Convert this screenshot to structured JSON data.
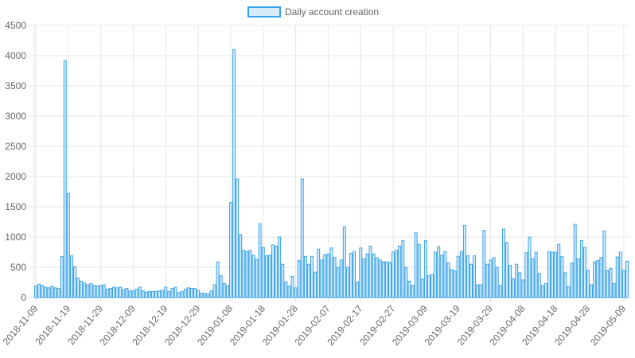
{
  "chart_data": {
    "type": "bar",
    "legend": {
      "position": "top",
      "label": "Daily account creation"
    },
    "colors": {
      "bar_fill": "#d7ecfb",
      "bar_stroke": "#36a2eb",
      "grid": "#e6e6e6",
      "text": "#666666"
    },
    "grid": true,
    "y_ticks": [
      "0",
      "500",
      "1000",
      "1500",
      "2000",
      "2500",
      "3000",
      "3500",
      "4000",
      "4500"
    ],
    "ylim": [
      0,
      4500
    ],
    "x_start": "2018-11-09",
    "x_ticks": [
      "2018-11-09",
      "2018-11-19",
      "2018-11-29",
      "2018-12-09",
      "2018-12-19",
      "2018-12-29",
      "2019-01-08",
      "2019-01-18",
      "2019-01-28",
      "2019-02-07",
      "2019-02-17",
      "2019-02-27",
      "2019-03-09",
      "2019-03-19",
      "2019-03-29",
      "2019-04-08",
      "2019-04-18",
      "2019-04-28",
      "2019-05-09"
    ],
    "values": [
      190,
      220,
      200,
      170,
      160,
      190,
      160,
      150,
      680,
      3920,
      1720,
      690,
      510,
      320,
      270,
      240,
      210,
      230,
      200,
      190,
      200,
      210,
      140,
      150,
      170,
      160,
      170,
      130,
      150,
      110,
      110,
      140,
      170,
      110,
      90,
      100,
      100,
      100,
      110,
      120,
      170,
      100,
      150,
      170,
      80,
      100,
      140,
      160,
      150,
      150,
      120,
      70,
      70,
      60,
      110,
      210,
      590,
      360,
      230,
      200,
      1570,
      4100,
      1960,
      1040,
      780,
      760,
      780,
      700,
      630,
      1220,
      830,
      690,
      700,
      870,
      850,
      1000,
      550,
      260,
      190,
      350,
      160,
      610,
      1960,
      680,
      550,
      680,
      420,
      800,
      620,
      710,
      720,
      820,
      660,
      500,
      620,
      1170,
      500,
      730,
      760,
      260,
      820,
      640,
      720,
      850,
      720,
      660,
      620,
      590,
      590,
      580,
      750,
      780,
      850,
      940,
      500,
      270,
      200,
      1070,
      880,
      300,
      940,
      360,
      380,
      750,
      840,
      700,
      760,
      570,
      460,
      440,
      680,
      760,
      1190,
      690,
      550,
      690,
      210,
      210,
      1110,
      550,
      620,
      660,
      500,
      200,
      1130,
      910,
      530,
      310,
      550,
      410,
      290,
      740,
      1000,
      640,
      750,
      400,
      200,
      230,
      760,
      750,
      750,
      880,
      680,
      410,
      180,
      570,
      1210,
      640,
      940,
      830,
      450,
      210,
      590,
      610,
      660,
      1100,
      450,
      480,
      230,
      670,
      750,
      450,
      600
    ]
  }
}
